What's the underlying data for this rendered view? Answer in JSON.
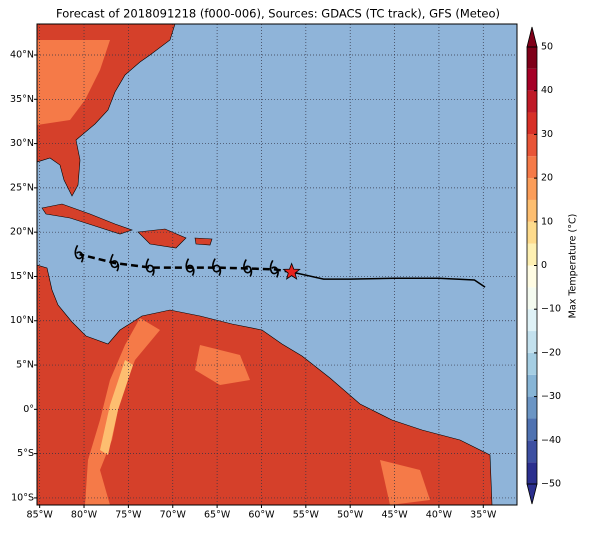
{
  "title": "Forecast of 2018091218 (f000-006), Sources: GDACS (TC track), GFS (Meteo)",
  "map": {
    "lonlim": [
      -85.3,
      -31.2
    ],
    "latlim": [
      -10.8,
      43.5
    ],
    "ocean_color": "#8fb4d9",
    "lonticks": [
      {
        "value": -85,
        "label": "85°W"
      },
      {
        "value": -80,
        "label": "80°W"
      },
      {
        "value": -75,
        "label": "75°W"
      },
      {
        "value": -70,
        "label": "70°W"
      },
      {
        "value": -65,
        "label": "65°W"
      },
      {
        "value": -60,
        "label": "60°W"
      },
      {
        "value": -55,
        "label": "55°W"
      },
      {
        "value": -50,
        "label": "50°W"
      },
      {
        "value": -45,
        "label": "45°W"
      },
      {
        "value": -40,
        "label": "40°W"
      },
      {
        "value": -35,
        "label": "35°W"
      }
    ],
    "latticks": [
      {
        "value": 40,
        "label": "40°N"
      },
      {
        "value": 35,
        "label": "35°N"
      },
      {
        "value": 30,
        "label": "30°N"
      },
      {
        "value": 25,
        "label": "25°N"
      },
      {
        "value": 20,
        "label": "20°N"
      },
      {
        "value": 15,
        "label": "15°N"
      },
      {
        "value": 10,
        "label": "10°N"
      },
      {
        "value": 5,
        "label": "5°N"
      },
      {
        "value": 0,
        "label": "0°"
      },
      {
        "value": -5,
        "label": "5°S"
      },
      {
        "value": -10,
        "label": "10°S"
      }
    ],
    "forecast_track": {
      "lon": [
        -56.6,
        -58.5,
        -61.5,
        -65,
        -68,
        -72.5,
        -76.5,
        -80.5
      ],
      "lat": [
        15.5,
        15.8,
        15.9,
        16,
        16,
        16,
        16.5,
        17.5
      ]
    },
    "past_track": {
      "lon": [
        -56.6,
        -53,
        -50,
        -45,
        -40,
        -36,
        -34.8
      ],
      "lat": [
        15.5,
        14.7,
        14.7,
        14.8,
        14.8,
        14.6,
        13.8
      ]
    },
    "current_position": {
      "lon": -56.6,
      "lat": 15.5,
      "color": "#e8231f"
    },
    "colorbar": {
      "label": "Max Temperature (°C)",
      "bounds": [
        -50,
        -45,
        -40,
        -35,
        -30,
        -25,
        -20,
        -15,
        -10,
        -5,
        0,
        5,
        10,
        15,
        20,
        25,
        30,
        35,
        40,
        45,
        50
      ],
      "colors": [
        "#2b2f8e",
        "#3d4fa1",
        "#4f72b1",
        "#6b95c4",
        "#87b5d6",
        "#a5cee3",
        "#c3e1ee",
        "#dff2f7",
        "#f5fbf0",
        "#fffce3",
        "#fef0b2",
        "#fedb8c",
        "#fdbe70",
        "#fb9d59",
        "#f57a48",
        "#e85537",
        "#d73027",
        "#bf1a27",
        "#a50026",
        "#7f0019"
      ],
      "ticks": [
        {
          "value": 50,
          "label": "50"
        },
        {
          "value": 40,
          "label": "40"
        },
        {
          "value": 30,
          "label": "30"
        },
        {
          "value": 20,
          "label": "20"
        },
        {
          "value": 10,
          "label": "10"
        },
        {
          "value": 0,
          "label": "0"
        },
        {
          "value": -10,
          "label": "−10"
        },
        {
          "value": -20,
          "label": "−20"
        },
        {
          "value": -30,
          "label": "−30"
        },
        {
          "value": -40,
          "label": "−40"
        },
        {
          "value": -50,
          "label": "−50"
        }
      ]
    }
  }
}
